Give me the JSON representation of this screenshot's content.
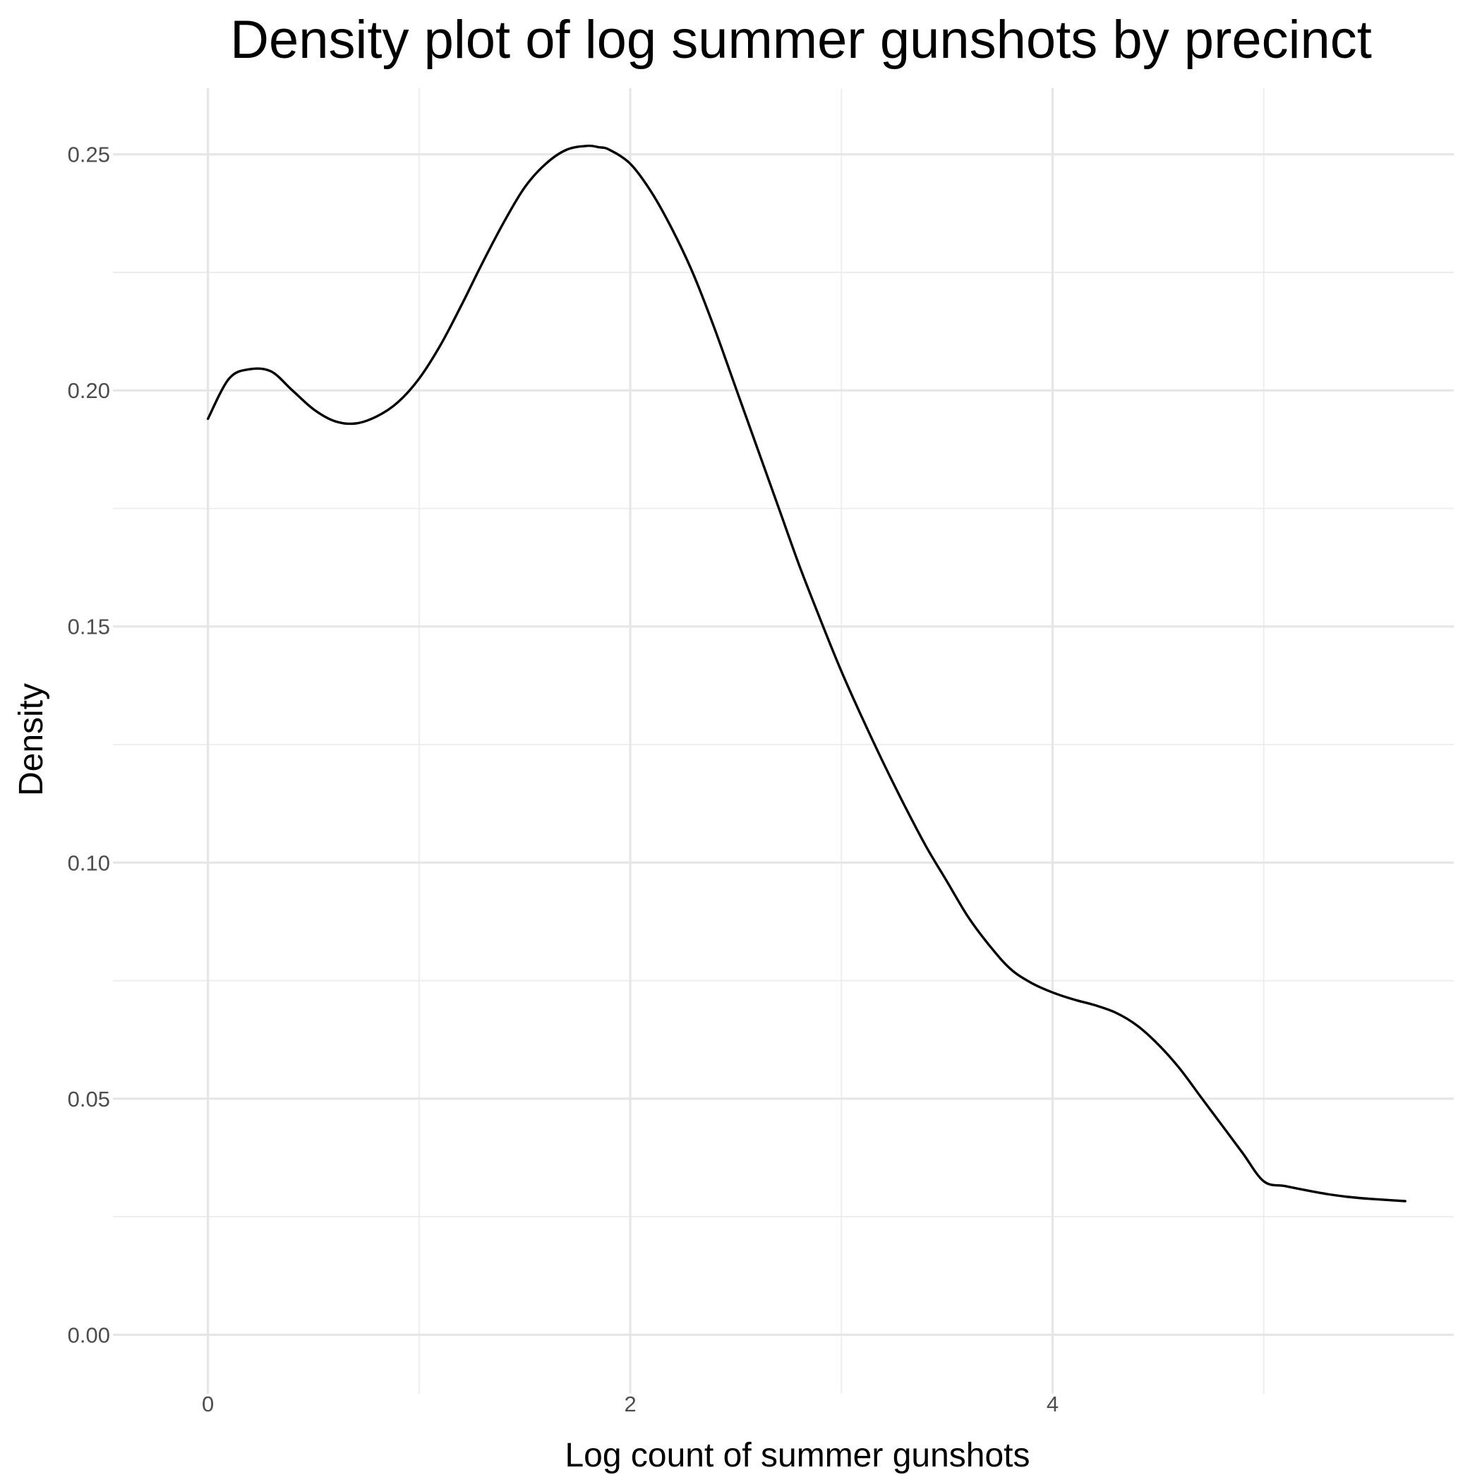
{
  "chart_data": {
    "type": "line",
    "title": "Density plot of log summer gunshots by precinct",
    "xlabel": "Log count of summer gunshots",
    "ylabel": "Density",
    "xlim": [
      -0.45,
      5.9
    ],
    "ylim": [
      -0.0125,
      0.264
    ],
    "x_major_ticks": [
      0,
      2,
      4
    ],
    "x_tick_labels": [
      "0",
      "2",
      "4"
    ],
    "x_minor_ticks": [
      1,
      3,
      5
    ],
    "y_major_ticks": [
      0.0,
      0.05,
      0.1,
      0.15,
      0.2,
      0.25
    ],
    "y_tick_labels": [
      "0.00",
      "0.05",
      "0.10",
      "0.15",
      "0.20",
      "0.25"
    ],
    "y_minor_ticks": [
      0.025,
      0.075,
      0.125,
      0.175,
      0.225
    ],
    "grid": true,
    "legend": "none",
    "series": [
      {
        "color": "#000000",
        "x": [
          0.0,
          0.1,
          0.2,
          0.3,
          0.4,
          0.5,
          0.6,
          0.7,
          0.8,
          0.9,
          1.0,
          1.1,
          1.2,
          1.3,
          1.4,
          1.5,
          1.6,
          1.7,
          1.8,
          1.85,
          1.9,
          2.0,
          2.1,
          2.2,
          2.3,
          2.4,
          2.5,
          2.6,
          2.7,
          2.8,
          2.9,
          3.0,
          3.1,
          3.2,
          3.3,
          3.4,
          3.5,
          3.6,
          3.7,
          3.8,
          3.9,
          4.0,
          4.1,
          4.2,
          4.3,
          4.4,
          4.5,
          4.6,
          4.7,
          4.8,
          4.9,
          5.0,
          5.1,
          5.2,
          5.3,
          5.4,
          5.5,
          5.6,
          5.67
        ],
        "y": [
          0.194,
          0.2025,
          0.2045,
          0.204,
          0.2,
          0.196,
          0.1935,
          0.193,
          0.1945,
          0.1975,
          0.2025,
          0.2095,
          0.218,
          0.227,
          0.2355,
          0.243,
          0.248,
          0.251,
          0.2518,
          0.2515,
          0.251,
          0.248,
          0.242,
          0.234,
          0.2245,
          0.213,
          0.2005,
          0.188,
          0.1755,
          0.163,
          0.1515,
          0.1405,
          0.1305,
          0.121,
          0.112,
          0.1035,
          0.096,
          0.0885,
          0.0825,
          0.0775,
          0.0745,
          0.0725,
          0.071,
          0.0698,
          0.0682,
          0.0655,
          0.0615,
          0.0565,
          0.0505,
          0.0445,
          0.0385,
          0.0325,
          0.0315,
          0.0306,
          0.0298,
          0.0292,
          0.0288,
          0.0285,
          0.0283
        ]
      }
    ]
  }
}
